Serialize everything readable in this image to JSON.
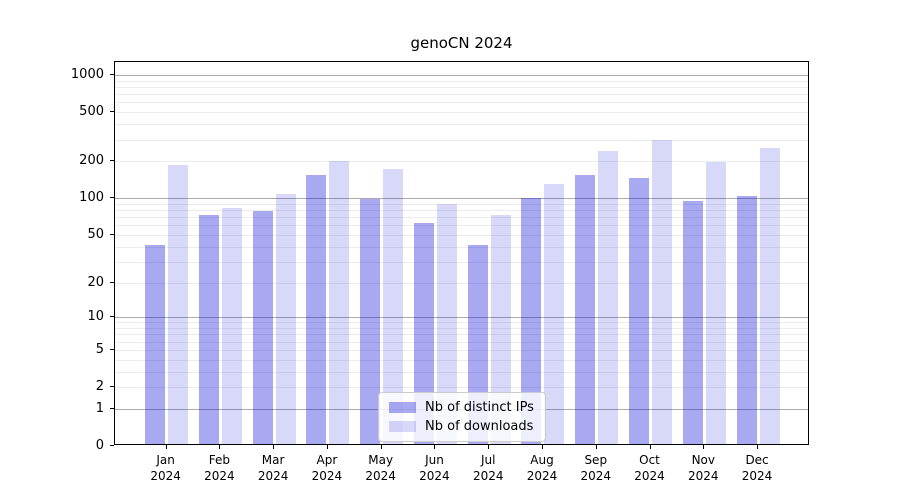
{
  "chart_data": {
    "type": "bar",
    "title": "genoCN 2024",
    "months": [
      "Jan",
      "Feb",
      "Mar",
      "Apr",
      "May",
      "Jun",
      "Jul",
      "Aug",
      "Sep",
      "Oct",
      "Nov",
      "Dec"
    ],
    "year": "2024",
    "series": [
      {
        "name": "Nb of distinct IPs",
        "color": "#a7a7f0",
        "rgba": "rgba(10,10,215,0.35)",
        "values": [
          40,
          70,
          75,
          150,
          95,
          60,
          40,
          97,
          150,
          140,
          92,
          100
        ]
      },
      {
        "name": "Nb of downloads",
        "color": "#d9d9f9",
        "rgba": "rgba(10,10,215,0.16)",
        "values": [
          180,
          80,
          105,
          195,
          165,
          87,
          70,
          125,
          232,
          285,
          190,
          245
        ]
      }
    ],
    "y_ticks": [
      1000,
      500,
      200,
      100,
      50,
      20,
      10,
      5,
      2,
      1,
      0
    ],
    "y_tick_labels": [
      "1000",
      "500",
      "200",
      "100",
      "50",
      "20",
      "10",
      "5",
      "2",
      "1",
      "0"
    ],
    "y_scale": "log1p",
    "grid": true,
    "legend_position": "lower center",
    "colors": {
      "major_gridline": "#ababab",
      "minor_gridline": "#ececec",
      "axis_frame": "#000000",
      "legend_border": "#cccccc",
      "background": "#ffffff"
    }
  }
}
